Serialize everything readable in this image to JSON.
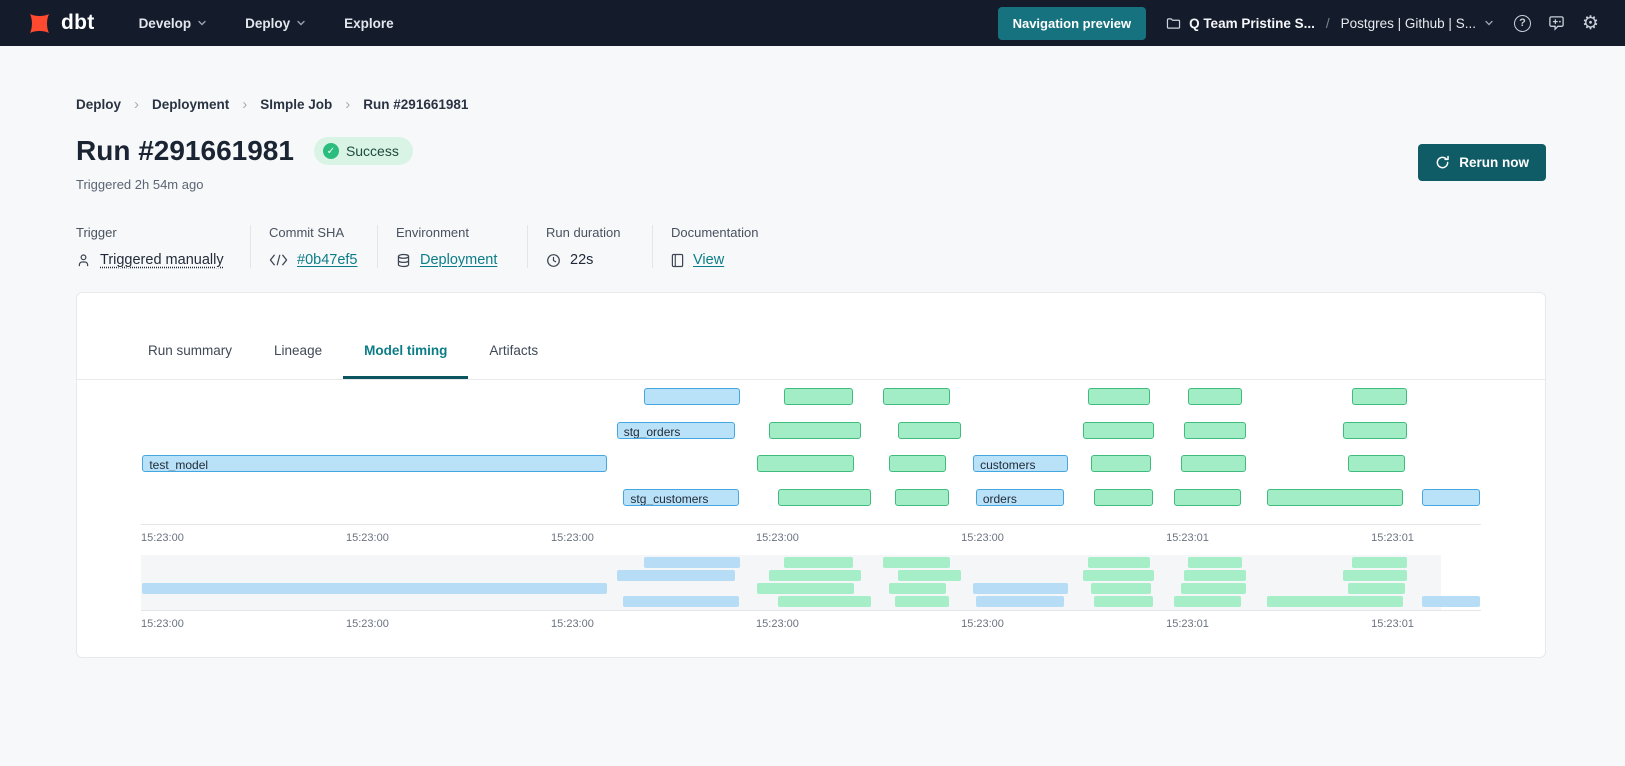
{
  "nav": {
    "logo_text": "dbt",
    "menus": [
      {
        "label": "Develop",
        "chevron": true
      },
      {
        "label": "Deploy",
        "chevron": true
      },
      {
        "label": "Explore",
        "chevron": false
      }
    ],
    "preview_button_label": "Navigation preview",
    "account_name": "Q Team Pristine S...",
    "account_separator": "/",
    "project_name": "Postgres | Github | S...",
    "icon_names": [
      "help-icon",
      "feedback-icon",
      "settings-gear-icon"
    ]
  },
  "breadcrumb": {
    "items": [
      "Deploy",
      "Deployment",
      "SImple Job",
      "Run #291661981"
    ],
    "separator": "›"
  },
  "header": {
    "title": "Run #291661981",
    "status_label": "Success",
    "triggered_text": "Triggered 2h 54m ago",
    "rerun_button_label": "Rerun now"
  },
  "meta": {
    "columns": [
      {
        "label": "Trigger",
        "value": "Triggered manually",
        "icon": "user",
        "style": "dashed",
        "interactable": false
      },
      {
        "label": "Commit SHA",
        "value": "#0b47ef5",
        "icon": "code",
        "style": "link",
        "interactable": true
      },
      {
        "label": "Environment",
        "value": "Deployment",
        "icon": "database",
        "style": "link",
        "interactable": true
      },
      {
        "label": "Run duration",
        "value": "22s",
        "icon": "clock",
        "style": "plain",
        "interactable": false
      },
      {
        "label": "Documentation",
        "value": "View",
        "icon": "document",
        "style": "link",
        "interactable": true
      }
    ]
  },
  "tabs": {
    "items": [
      "Run summary",
      "Lineage",
      "Model timing",
      "Artifacts"
    ],
    "active": "Model timing"
  },
  "colors": {
    "nav_bg": "#141b2b",
    "preview_bg": "#16727e",
    "rerun_bg": "#0f5b66",
    "accent_teal": "#0c7d87",
    "success_bg": "#d9f4e5",
    "success_icon": "#2bbd7e",
    "logo_orange": "#ff4a2f",
    "bar_blue_fill": "#b9e1f8",
    "bar_blue_border": "#46a7e0",
    "bar_green_fill": "#a3edc6",
    "bar_green_border": "#3fbc7d"
  },
  "chart_data": {
    "type": "gantt",
    "title": "Model timing",
    "x_tick_labels": [
      "15:23:00",
      "15:23:00",
      "15:23:00",
      "15:23:00",
      "15:23:00",
      "15:23:01",
      "15:23:01"
    ],
    "x_tick_positions_pct": [
      0,
      15.3,
      30.6,
      45.9,
      61.2,
      76.5,
      91.8
    ],
    "mini_panel_width_pct": 97,
    "rows": [
      [
        {
          "label": "",
          "color": "blue",
          "start_pct": 37.5,
          "end_pct": 44.7
        },
        {
          "label": "",
          "color": "green",
          "start_pct": 48.0,
          "end_pct": 53.1
        },
        {
          "label": "",
          "color": "green",
          "start_pct": 55.4,
          "end_pct": 60.4
        },
        {
          "label": "",
          "color": "green",
          "start_pct": 70.7,
          "end_pct": 75.3
        },
        {
          "label": "",
          "color": "green",
          "start_pct": 78.1,
          "end_pct": 82.2
        },
        {
          "label": "",
          "color": "green",
          "start_pct": 90.4,
          "end_pct": 94.5
        }
      ],
      [
        {
          "label": "stg_orders",
          "color": "blue",
          "start_pct": 35.5,
          "end_pct": 44.3
        },
        {
          "label": "",
          "color": "green",
          "start_pct": 46.9,
          "end_pct": 53.7
        },
        {
          "label": "",
          "color": "green",
          "start_pct": 56.5,
          "end_pct": 61.2
        },
        {
          "label": "",
          "color": "green",
          "start_pct": 70.3,
          "end_pct": 75.6
        },
        {
          "label": "",
          "color": "green",
          "start_pct": 77.8,
          "end_pct": 82.5
        },
        {
          "label": "",
          "color": "green",
          "start_pct": 89.7,
          "end_pct": 94.5
        }
      ],
      [
        {
          "label": "test_model",
          "color": "blue",
          "start_pct": 0.1,
          "end_pct": 34.8
        },
        {
          "label": "",
          "color": "green",
          "start_pct": 46.0,
          "end_pct": 53.2
        },
        {
          "label": "",
          "color": "green",
          "start_pct": 55.8,
          "end_pct": 60.1
        },
        {
          "label": "customers",
          "color": "blue",
          "start_pct": 62.1,
          "end_pct": 69.2
        },
        {
          "label": "",
          "color": "green",
          "start_pct": 70.9,
          "end_pct": 75.4
        },
        {
          "label": "",
          "color": "green",
          "start_pct": 77.6,
          "end_pct": 82.5
        },
        {
          "label": "",
          "color": "green",
          "start_pct": 90.1,
          "end_pct": 94.3
        }
      ],
      [
        {
          "label": "stg_customers",
          "color": "blue",
          "start_pct": 36.0,
          "end_pct": 44.6
        },
        {
          "label": "",
          "color": "green",
          "start_pct": 47.5,
          "end_pct": 54.5
        },
        {
          "label": "",
          "color": "green",
          "start_pct": 56.3,
          "end_pct": 60.3
        },
        {
          "label": "orders",
          "color": "blue",
          "start_pct": 62.3,
          "end_pct": 68.9
        },
        {
          "label": "",
          "color": "green",
          "start_pct": 71.1,
          "end_pct": 75.5
        },
        {
          "label": "",
          "color": "green",
          "start_pct": 77.1,
          "end_pct": 82.1
        },
        {
          "label": "",
          "color": "green",
          "start_pct": 84.0,
          "end_pct": 94.2
        },
        {
          "label": "",
          "color": "blue",
          "start_pct": 95.6,
          "end_pct": 99.9
        }
      ]
    ]
  }
}
